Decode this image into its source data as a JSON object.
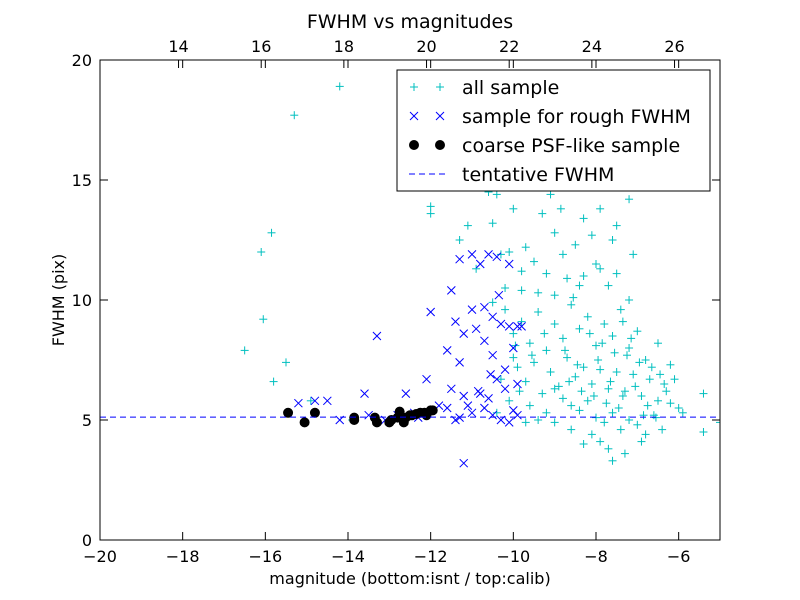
{
  "chart_data": {
    "type": "scatter",
    "title": "FWHM vs magnitudes",
    "xlabel": "magnitude (bottom:isnt / top:calib)",
    "ylabel": "FWHM (pix)",
    "xlim": [
      -20,
      -5
    ],
    "ylim": [
      0,
      20
    ],
    "x_ticks": [
      -20,
      -18,
      -16,
      -14,
      -12,
      -10,
      -8,
      -6
    ],
    "x_tick_labels": [
      "−20",
      "−18",
      "−16",
      "−14",
      "−12",
      "−10",
      "−8",
      "−6"
    ],
    "y_ticks": [
      0,
      5,
      10,
      15,
      20
    ],
    "y_tick_labels": [
      "0",
      "5",
      "10",
      "15",
      "20"
    ],
    "top_axis": {
      "offset": 32.1,
      "ticks": [
        14,
        16,
        18,
        20,
        22,
        24,
        26
      ],
      "tick_labels": [
        "14",
        "16",
        "18",
        "20",
        "22",
        "24",
        "26"
      ]
    },
    "grid": false,
    "legend_position": "top-right",
    "series": [
      {
        "name": "all sample",
        "marker": "plus",
        "color": "#00bfbf",
        "points": [
          [
            -16.5,
            7.9
          ],
          [
            -16.1,
            12.0
          ],
          [
            -16.05,
            9.2
          ],
          [
            -15.85,
            12.8
          ],
          [
            -15.8,
            6.6
          ],
          [
            -15.5,
            7.4
          ],
          [
            -15.3,
            17.7
          ],
          [
            -14.2,
            18.9
          ],
          [
            -14.9,
            5.8
          ],
          [
            -13.9,
            5.0
          ],
          [
            -12.0,
            13.6
          ],
          [
            -12.0,
            13.9
          ],
          [
            -11.1,
            13.1
          ],
          [
            -11.3,
            12.5
          ],
          [
            -10.9,
            11.3
          ],
          [
            -10.5,
            13.2
          ],
          [
            -10.3,
            11.9
          ],
          [
            -10.4,
            14.4
          ],
          [
            -10.2,
            10.5
          ],
          [
            -10.0,
            13.8
          ],
          [
            -9.7,
            12.2
          ],
          [
            -9.3,
            13.6
          ],
          [
            -9.1,
            14.4
          ],
          [
            -8.85,
            13.8
          ],
          [
            -8.6,
            14.8
          ],
          [
            -8.3,
            13.4
          ],
          [
            -7.9,
            13.8
          ],
          [
            -7.6,
            12.5
          ],
          [
            -7.2,
            14.2
          ],
          [
            -7.5,
            13.1
          ],
          [
            -8.5,
            16.2
          ],
          [
            -8.2,
            17.4
          ],
          [
            -8.0,
            14.9
          ],
          [
            -8.7,
            19.4
          ],
          [
            -8.2,
            18.6
          ],
          [
            -7.8,
            16.1
          ],
          [
            -7.4,
            15.3
          ],
          [
            -9.0,
            12.8
          ],
          [
            -10.6,
            14.5
          ],
          [
            -10.1,
            12.0
          ],
          [
            -9.8,
            10.4
          ],
          [
            -9.5,
            11.6
          ],
          [
            -9.2,
            11.1
          ],
          [
            -9.0,
            10.2
          ],
          [
            -8.8,
            11.9
          ],
          [
            -8.5,
            12.3
          ],
          [
            -8.3,
            11.0
          ],
          [
            -8.1,
            12.7
          ],
          [
            -7.9,
            11.3
          ],
          [
            -7.7,
            10.6
          ],
          [
            -7.5,
            11.1
          ],
          [
            -7.2,
            10.0
          ],
          [
            -10.2,
            9.6
          ],
          [
            -10.0,
            8.6
          ],
          [
            -9.8,
            9.1
          ],
          [
            -9.6,
            8.2
          ],
          [
            -9.4,
            9.5
          ],
          [
            -9.2,
            7.9
          ],
          [
            -9.0,
            9.0
          ],
          [
            -8.8,
            8.4
          ],
          [
            -8.6,
            9.8
          ],
          [
            -8.4,
            8.8
          ],
          [
            -8.2,
            9.3
          ],
          [
            -8.0,
            8.1
          ],
          [
            -7.8,
            9.0
          ],
          [
            -7.6,
            8.5
          ],
          [
            -7.4,
            9.6
          ],
          [
            -7.2,
            8.0
          ],
          [
            -7.0,
            8.7
          ],
          [
            -6.8,
            7.5
          ],
          [
            -9.9,
            7.2
          ],
          [
            -9.7,
            6.6
          ],
          [
            -9.5,
            7.4
          ],
          [
            -9.3,
            6.1
          ],
          [
            -9.1,
            7.0
          ],
          [
            -8.9,
            6.4
          ],
          [
            -8.7,
            7.6
          ],
          [
            -8.5,
            6.8
          ],
          [
            -8.3,
            7.2
          ],
          [
            -8.1,
            6.5
          ],
          [
            -7.9,
            7.1
          ],
          [
            -7.7,
            6.3
          ],
          [
            -7.5,
            7.0
          ],
          [
            -7.3,
            6.2
          ],
          [
            -7.1,
            6.9
          ],
          [
            -6.9,
            6.0
          ],
          [
            -6.7,
            6.7
          ],
          [
            -6.5,
            5.8
          ],
          [
            -6.3,
            6.2
          ],
          [
            -6.0,
            5.5
          ],
          [
            -9.6,
            5.6
          ],
          [
            -9.2,
            5.3
          ],
          [
            -8.8,
            5.9
          ],
          [
            -8.4,
            5.4
          ],
          [
            -8.0,
            5.1
          ],
          [
            -7.8,
            4.9
          ],
          [
            -7.6,
            5.3
          ],
          [
            -7.4,
            4.6
          ],
          [
            -7.2,
            5.0
          ],
          [
            -7.0,
            4.8
          ],
          [
            -6.8,
            4.4
          ],
          [
            -6.6,
            5.2
          ],
          [
            -6.4,
            4.6
          ],
          [
            -6.2,
            5.7
          ],
          [
            -5.9,
            5.3
          ],
          [
            -5.4,
            4.5
          ],
          [
            -5.4,
            6.1
          ],
          [
            -5.0,
            4.9
          ],
          [
            -7.7,
            3.8
          ],
          [
            -7.9,
            4.1
          ],
          [
            -7.6,
            3.3
          ],
          [
            -7.3,
            3.6
          ],
          [
            -8.1,
            4.4
          ],
          [
            -8.3,
            4.0
          ],
          [
            -6.9,
            4.1
          ],
          [
            -8.6,
            4.6
          ],
          [
            -9.0,
            4.9
          ],
          [
            -6.2,
            7.3
          ],
          [
            -6.5,
            8.2
          ],
          [
            -6.1,
            6.7
          ],
          [
            -7.1,
            11.9
          ],
          [
            -8.0,
            11.5
          ],
          [
            -8.4,
            10.6
          ],
          [
            -8.7,
            10.9
          ],
          [
            -9.4,
            10.3
          ],
          [
            -9.8,
            11.2
          ],
          [
            -10.5,
            9.9
          ],
          [
            -9.95,
            8.1
          ],
          [
            -10.3,
            6.7
          ],
          [
            -10.4,
            5.3
          ],
          [
            -10.1,
            5.8
          ],
          [
            -9.7,
            4.9
          ],
          [
            -9.4,
            5.0
          ],
          [
            -9.0,
            6.3
          ],
          [
            -8.6,
            5.6
          ],
          [
            -8.2,
            5.8
          ],
          [
            -7.85,
            8.2
          ],
          [
            -7.55,
            7.8
          ],
          [
            -7.25,
            7.7
          ],
          [
            -6.95,
            7.4
          ],
          [
            -7.95,
            7.5
          ],
          [
            -8.15,
            8.6
          ],
          [
            -8.45,
            7.3
          ],
          [
            -8.75,
            7.9
          ],
          [
            -7.65,
            6.6
          ],
          [
            -7.35,
            6.0
          ],
          [
            -7.05,
            6.4
          ],
          [
            -6.75,
            5.6
          ],
          [
            -6.45,
            6.9
          ],
          [
            -6.85,
            5.2
          ],
          [
            -7.45,
            5.5
          ],
          [
            -7.75,
            5.7
          ],
          [
            -8.05,
            6.0
          ],
          [
            -8.35,
            6.2
          ],
          [
            -8.65,
            6.6
          ],
          [
            -9.25,
            8.6
          ],
          [
            -9.55,
            7.7
          ],
          [
            -9.85,
            6.2
          ],
          [
            -10.0,
            7.6
          ],
          [
            -8.55,
            10.1
          ],
          [
            -7.35,
            9.1
          ],
          [
            -7.15,
            8.4
          ],
          [
            -6.65,
            7.2
          ],
          [
            -6.35,
            6.5
          ],
          [
            -6.55,
            5.1
          ]
        ]
      },
      {
        "name": "sample for rough FWHM",
        "marker": "x",
        "color": "#0000ff",
        "points": [
          [
            -15.2,
            5.7
          ],
          [
            -14.8,
            5.8
          ],
          [
            -14.5,
            5.8
          ],
          [
            -13.6,
            6.1
          ],
          [
            -12.6,
            6.1
          ],
          [
            -12.1,
            6.7
          ],
          [
            -13.3,
            8.5
          ],
          [
            -12.0,
            9.5
          ],
          [
            -11.5,
            10.4
          ],
          [
            -11.3,
            11.7
          ],
          [
            -11.0,
            11.9
          ],
          [
            -10.8,
            11.5
          ],
          [
            -10.6,
            11.9
          ],
          [
            -10.4,
            11.8
          ],
          [
            -11.6,
            7.9
          ],
          [
            -11.4,
            9.1
          ],
          [
            -11.2,
            8.6
          ],
          [
            -10.9,
            8.8
          ],
          [
            -10.7,
            9.7
          ],
          [
            -10.5,
            9.3
          ],
          [
            -10.3,
            9.0
          ],
          [
            -10.1,
            8.9
          ],
          [
            -9.9,
            8.9
          ],
          [
            -11.3,
            7.4
          ],
          [
            -10.7,
            8.3
          ],
          [
            -10.5,
            7.7
          ],
          [
            -10.2,
            7.1
          ],
          [
            -10.0,
            8.0
          ],
          [
            -11.5,
            6.3
          ],
          [
            -11.2,
            6.0
          ],
          [
            -10.8,
            6.1
          ],
          [
            -10.6,
            5.9
          ],
          [
            -10.4,
            6.7
          ],
          [
            -10.2,
            6.3
          ],
          [
            -10.0,
            5.4
          ],
          [
            -11.6,
            5.5
          ],
          [
            -11.3,
            5.1
          ],
          [
            -11.0,
            5.3
          ],
          [
            -10.7,
            5.5
          ],
          [
            -10.5,
            5.2
          ],
          [
            -10.3,
            5.0
          ],
          [
            -10.1,
            4.9
          ],
          [
            -9.9,
            5.2
          ],
          [
            -11.2,
            3.2
          ],
          [
            -11.4,
            5.0
          ],
          [
            -12.4,
            5.3
          ],
          [
            -12.8,
            5.2
          ],
          [
            -13.1,
            5.0
          ],
          [
            -13.5,
            5.2
          ],
          [
            -14.2,
            5.0
          ],
          [
            -12.3,
            5.1
          ],
          [
            -11.8,
            5.6
          ],
          [
            -11.1,
            5.6
          ],
          [
            -10.85,
            6.2
          ],
          [
            -10.55,
            6.9
          ],
          [
            -9.8,
            8.9
          ],
          [
            -9.9,
            6.5
          ],
          [
            -10.1,
            11.5
          ],
          [
            -10.35,
            10.2
          ],
          [
            -11.0,
            9.6
          ]
        ]
      },
      {
        "name": "coarse PSF-like sample",
        "marker": "circle",
        "color": "#000000",
        "points": [
          [
            -15.45,
            5.3
          ],
          [
            -15.05,
            4.9
          ],
          [
            -14.8,
            5.3
          ],
          [
            -13.85,
            5.1
          ],
          [
            -13.85,
            5.0
          ],
          [
            -13.35,
            5.1
          ],
          [
            -13.3,
            4.9
          ],
          [
            -13.0,
            4.9
          ],
          [
            -12.95,
            5.0
          ],
          [
            -12.8,
            5.1
          ],
          [
            -12.75,
            5.35
          ],
          [
            -12.65,
            4.9
          ],
          [
            -12.6,
            5.1
          ],
          [
            -12.5,
            5.2
          ],
          [
            -12.45,
            5.2
          ],
          [
            -12.35,
            5.25
          ],
          [
            -12.25,
            5.3
          ],
          [
            -12.15,
            5.3
          ],
          [
            -12.1,
            5.2
          ],
          [
            -12.0,
            5.4
          ],
          [
            -11.95,
            5.4
          ]
        ]
      },
      {
        "name": "tentative FWHM",
        "marker": "dashed-line",
        "color": "#0000ff",
        "y": 5.12
      }
    ]
  }
}
